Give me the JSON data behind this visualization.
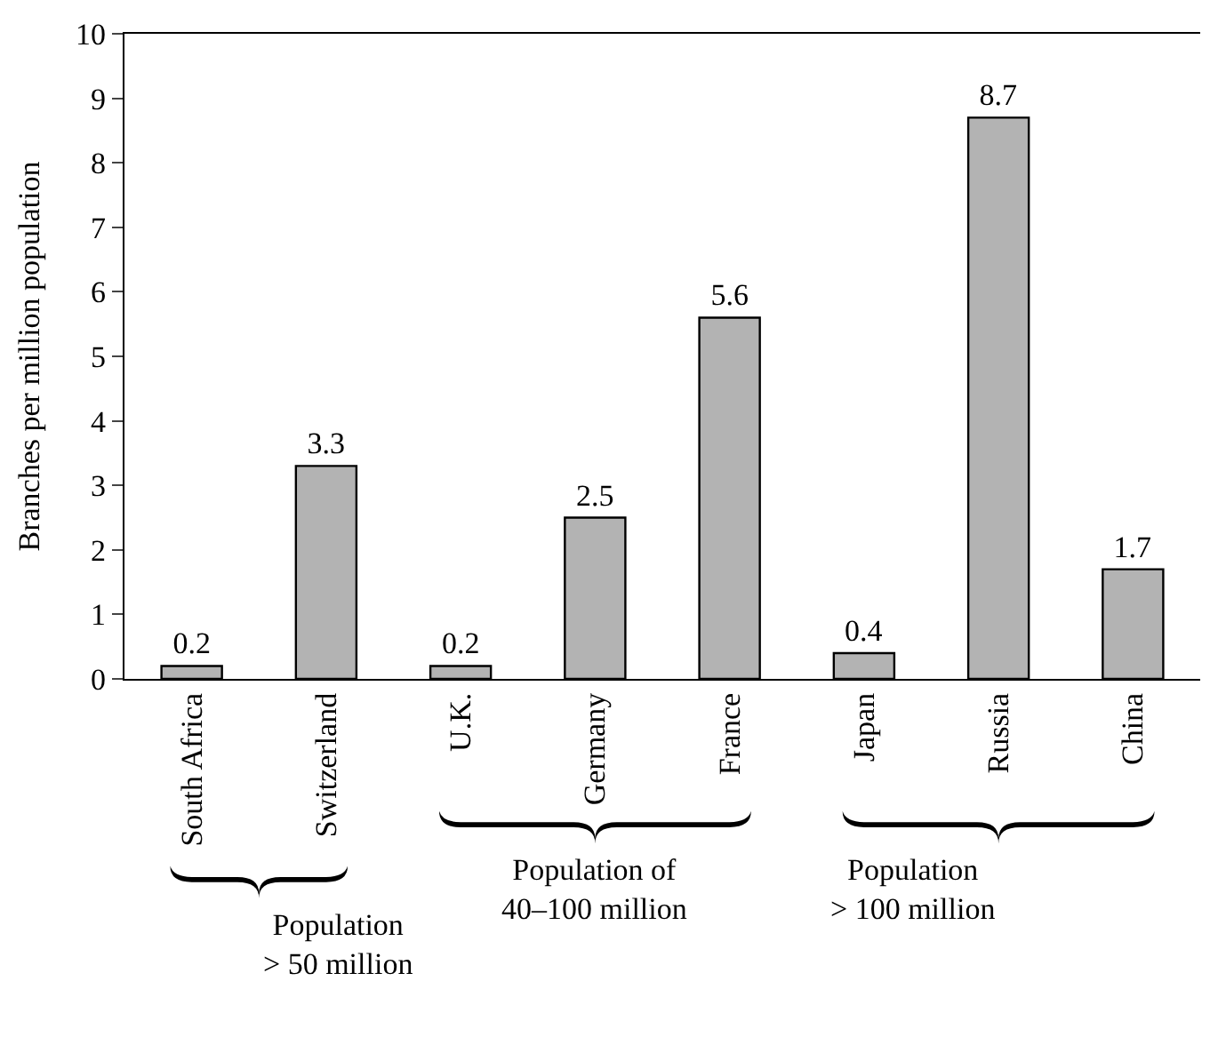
{
  "chart_data": {
    "type": "bar",
    "ylabel": "Branches per million population",
    "categories": [
      "South Africa",
      "Switzerland",
      "U.K.",
      "Germany",
      "France",
      "Japan",
      "Russia",
      "China"
    ],
    "values": [
      0.2,
      3.3,
      0.2,
      2.5,
      5.6,
      0.4,
      8.7,
      1.7
    ],
    "color": "#b3b3b3",
    "data_labels": true,
    "ylim": [
      0,
      10
    ],
    "yticks": [
      0,
      1,
      2,
      3,
      4,
      5,
      6,
      7,
      8,
      9,
      10
    ],
    "annotations": [
      "Population\n> 50 million",
      "Population of\n40–100 million",
      "Population\n> 100 million"
    ]
  }
}
